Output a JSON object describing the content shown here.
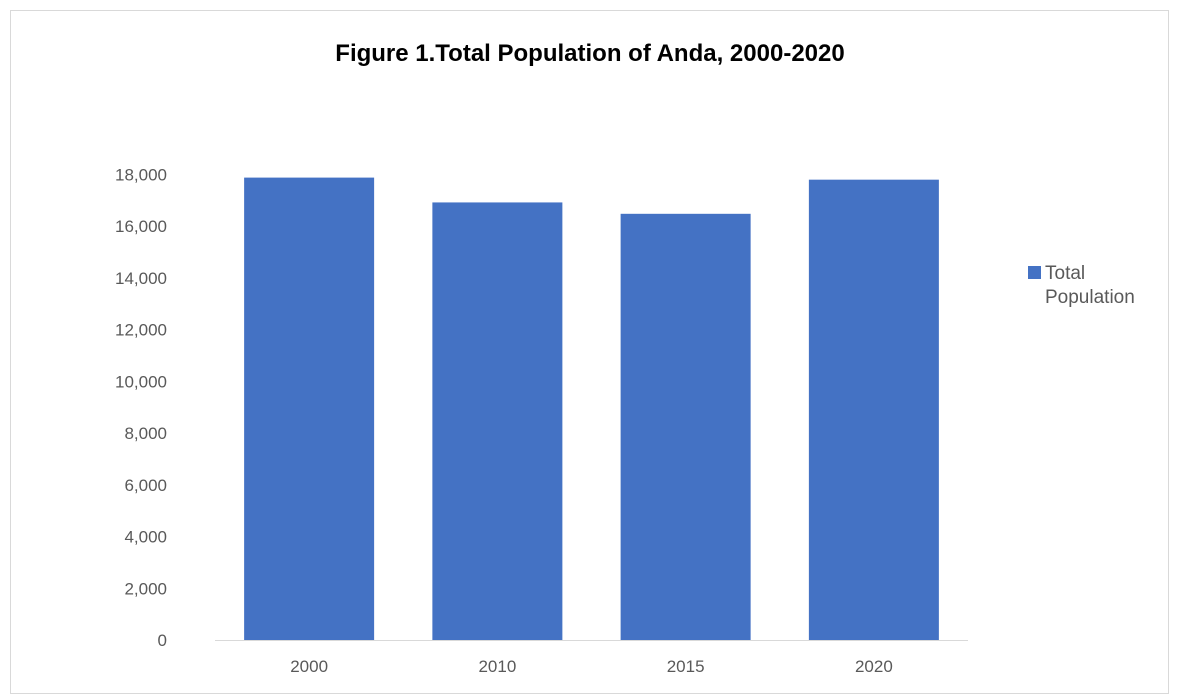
{
  "chart_data": {
    "type": "bar",
    "title": "Figure 1.Total Population of Anda, 2000-2020",
    "categories": [
      "2000",
      "2010",
      "2015",
      "2020"
    ],
    "series": [
      {
        "name": "Total Population",
        "color": "#4472C4",
        "values": [
          17880,
          16920,
          16480,
          17800
        ]
      }
    ],
    "y_ticks": [
      "0",
      "2,000",
      "4,000",
      "6,000",
      "8,000",
      "10,000",
      "12,000",
      "14,000",
      "16,000",
      "18,000"
    ],
    "ylim": [
      0,
      18000
    ],
    "xlabel": "",
    "ylabel": "",
    "grid": false,
    "legend_position": "right",
    "legend_lines": [
      "Total",
      "Population"
    ]
  }
}
